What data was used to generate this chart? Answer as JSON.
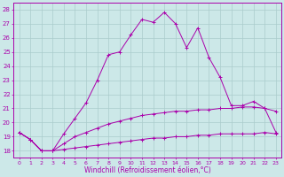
{
  "xlabel": "Windchill (Refroidissement éolien,°C)",
  "bg_color": "#cce8e8",
  "line_color": "#aa00aa",
  "grid_color": "#aacccc",
  "x": [
    0,
    1,
    2,
    3,
    4,
    5,
    6,
    7,
    8,
    9,
    10,
    11,
    12,
    13,
    14,
    15,
    16,
    17,
    18,
    19,
    20,
    21,
    22,
    23
  ],
  "line1": [
    19.3,
    18.8,
    18.0,
    18.0,
    18.1,
    18.2,
    18.3,
    18.4,
    18.5,
    18.6,
    18.7,
    18.8,
    18.9,
    18.9,
    19.0,
    19.0,
    19.1,
    19.1,
    19.2,
    19.2,
    19.2,
    19.2,
    19.3,
    19.2
  ],
  "line2": [
    19.3,
    18.8,
    18.0,
    18.0,
    18.5,
    19.0,
    19.3,
    19.6,
    19.9,
    20.1,
    20.3,
    20.5,
    20.6,
    20.7,
    20.8,
    20.8,
    20.9,
    20.9,
    21.0,
    21.0,
    21.1,
    21.1,
    21.0,
    20.8
  ],
  "line3": [
    19.3,
    18.8,
    18.0,
    18.0,
    19.2,
    20.3,
    21.4,
    23.0,
    24.8,
    25.0,
    26.2,
    27.3,
    27.1,
    27.8,
    27.0,
    25.3,
    26.7,
    24.6,
    23.2,
    21.2,
    21.2,
    21.5,
    21.0,
    19.3
  ],
  "ylim": [
    17.5,
    28.5
  ],
  "xlim": [
    -0.5,
    23.5
  ],
  "yticks": [
    18,
    19,
    20,
    21,
    22,
    23,
    24,
    25,
    26,
    27,
    28
  ],
  "xticks": [
    0,
    1,
    2,
    3,
    4,
    5,
    6,
    7,
    8,
    9,
    10,
    11,
    12,
    13,
    14,
    15,
    16,
    17,
    18,
    19,
    20,
    21,
    22,
    23
  ]
}
